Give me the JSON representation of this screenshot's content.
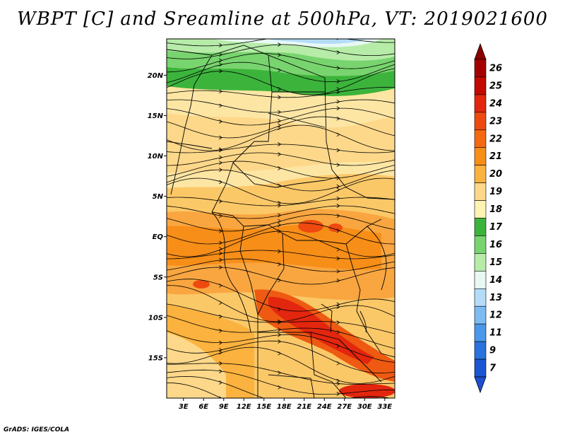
{
  "title": "WBPT [C] and Sreamline at 500hPa, VT: 2019021600",
  "credit": "GrADS: IGES/COLA",
  "map": {
    "lat_labels": [
      "20N",
      "15N",
      "10N",
      "5N",
      "EQ",
      "5S",
      "10S",
      "15S"
    ],
    "lon_labels": [
      "3E",
      "6E",
      "9E",
      "12E",
      "15E",
      "18E",
      "21E",
      "24E",
      "27E",
      "30E",
      "33E"
    ],
    "lat_range": [
      -20,
      24.5
    ],
    "lon_range": [
      0.5,
      34.5
    ]
  },
  "colorbar": {
    "labels": [
      "26",
      "25",
      "24",
      "23",
      "22",
      "21",
      "20",
      "19",
      "18",
      "17",
      "16",
      "15",
      "14",
      "13",
      "12",
      "11",
      "9",
      "7"
    ],
    "colors": [
      "#a50000",
      "#c40a00",
      "#e3260e",
      "#ee4a10",
      "#f46a10",
      "#f78e18",
      "#fbb23e",
      "#fdd88a",
      "#fff3b3",
      "#3cb43c",
      "#78d46e",
      "#b6eca8",
      "#e8f8f4",
      "#b4dcf8",
      "#7cbcf2",
      "#4a98ea",
      "#2a72de",
      "#1a56d2"
    ],
    "top_arrow_color": "#8b0000",
    "bottom_arrow_color": "#1e4fd0"
  }
}
